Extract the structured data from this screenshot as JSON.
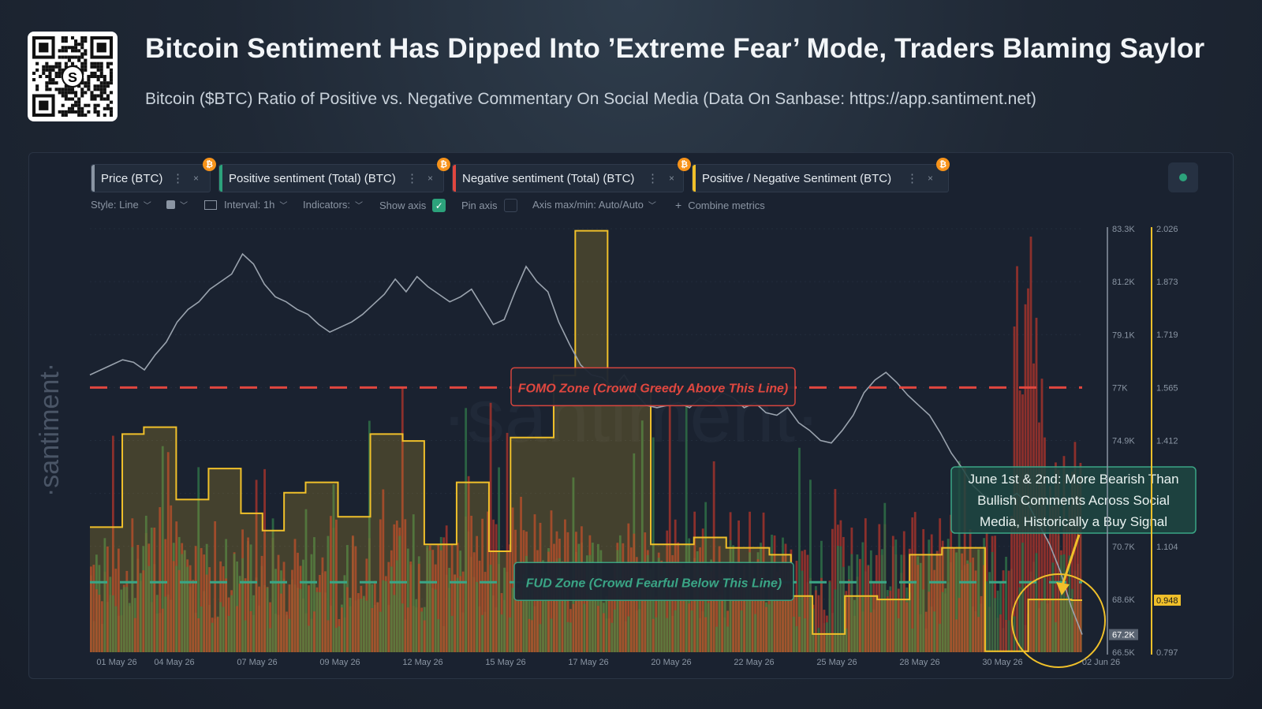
{
  "header": {
    "title": "Bitcoin Sentiment Has Dipped Into ’Extreme Fear’ Mode, Traders Blaming Saylor",
    "subtitle": "Bitcoin ($BTC) Ratio of Positive vs. Negative Commentary On Social Media (Data On Sanbase: https://app.santiment.net)",
    "qr_logo": "S"
  },
  "tabs": [
    {
      "label": "Price (BTC)",
      "color": "#8a95a3"
    },
    {
      "label": "Positive sentiment (Total) (BTC)",
      "color": "#2ca27b"
    },
    {
      "label": "Negative sentiment (Total) (BTC)",
      "color": "#e0473f"
    },
    {
      "label": "Positive / Negative Sentiment (BTC)",
      "color": "#f0c02a"
    }
  ],
  "tab_icons": {
    "menu": "⋮",
    "close": "×",
    "coin": "₿"
  },
  "toolbar": {
    "style": "Style: Line",
    "interval": "Interval: 1h",
    "indicators": "Indicators:",
    "show_axis": "Show axis",
    "pin_axis": "Pin axis",
    "axis_minmax": "Axis max/min: Auto/Auto",
    "combine": "Combine metrics",
    "check_mark": "✓",
    "plus": "+"
  },
  "watermark": {
    "side": "·santiment·",
    "center": "·santiment·"
  },
  "chart_data": {
    "type": "line",
    "x_labels": [
      "01 May 26",
      "04 May 26",
      "07 May 26",
      "09 May 26",
      "12 May 26",
      "15 May 26",
      "17 May 26",
      "20 May 26",
      "22 May 26",
      "25 May 26",
      "28 May 26",
      "30 May 26",
      "02 Jun 26"
    ],
    "price_axis": {
      "ticks": [
        "83.3K",
        "81.2K",
        "79.1K",
        "77K",
        "74.9K",
        "70.7K",
        "68.6K",
        "66.5K"
      ],
      "ylim": [
        66500,
        83300
      ],
      "current": "67.2K",
      "current_value": 67200
    },
    "ratio_axis": {
      "ticks": [
        "2.026",
        "1.873",
        "1.719",
        "1.565",
        "1.412",
        "1.104",
        "0.797"
      ],
      "ylim": [
        0.797,
        2.026
      ],
      "current": "0.948",
      "current_value": 0.948
    },
    "series": [
      {
        "name": "Price (BTC)",
        "color": "#9aa3ae",
        "unit": "USD",
        "values": [
          77500,
          77700,
          77900,
          78100,
          78000,
          77700,
          78300,
          78800,
          79600,
          80100,
          80400,
          80900,
          81200,
          81500,
          82300,
          81900,
          81100,
          80600,
          80400,
          80100,
          79900,
          79500,
          79200,
          79400,
          79600,
          79900,
          80300,
          80700,
          81300,
          80800,
          81400,
          81000,
          80700,
          80400,
          80600,
          80900,
          80200,
          79500,
          79700,
          80800,
          81800,
          81200,
          80800,
          79600,
          78700,
          77900,
          77500,
          77400,
          77000,
          77500,
          76800,
          76300,
          76200,
          76300,
          76400,
          76200,
          76600,
          76400,
          76800,
          76600,
          76200,
          76400,
          76000,
          75900,
          76200,
          75600,
          75300,
          74900,
          74800,
          75300,
          75900,
          76800,
          77300,
          77600,
          77200,
          76700,
          76300,
          75900,
          75200,
          74400,
          73800,
          73100,
          72700,
          72500,
          72500,
          72800,
          72400,
          71600,
          70800,
          69700,
          68300,
          67200
        ]
      },
      {
        "name": "Positive / Negative Sentiment (BTC)",
        "color": "#f0c02a",
        "unit": "ratio",
        "values": [
          1.16,
          1.16,
          1.16,
          1.43,
          1.43,
          1.45,
          1.45,
          1.45,
          1.24,
          1.24,
          1.24,
          1.33,
          1.33,
          1.33,
          1.2,
          1.2,
          1.15,
          1.15,
          1.26,
          1.26,
          1.29,
          1.29,
          1.29,
          1.19,
          1.19,
          1.19,
          1.43,
          1.43,
          1.43,
          1.41,
          1.41,
          1.11,
          1.11,
          1.11,
          1.29,
          1.29,
          1.29,
          1.09,
          1.09,
          1.42,
          1.42,
          1.42,
          1.42,
          1.6,
          1.6,
          2.02,
          2.02,
          2.02,
          1.56,
          1.56,
          1.56,
          1.56,
          1.11,
          1.11,
          1.11,
          1.11,
          1.13,
          1.13,
          1.13,
          1.1,
          1.1,
          1.1,
          1.1,
          1.08,
          1.08,
          0.96,
          0.96,
          0.85,
          0.85,
          0.85,
          0.96,
          0.96,
          0.96,
          0.95,
          0.95,
          0.95,
          1.08,
          1.08,
          1.08,
          1.1,
          1.1,
          1.1,
          1.1,
          0.8,
          0.8,
          0.8,
          0.8,
          0.95,
          0.95,
          0.95,
          0.95,
          0.948
        ]
      }
    ],
    "bars": {
      "positive": {
        "name": "Positive sentiment (Total) (BTC)",
        "color": "#2f6e46"
      },
      "negative": {
        "name": "Negative sentiment (Total) (BTC)",
        "color": "#a1322c"
      }
    },
    "reference_lines": [
      {
        "label": "FOMO Zone (Crowd Greedy Above This Line)",
        "value": 1.565,
        "color": "#e0473f"
      },
      {
        "label": "FUD Zone (Crowd Fearful Below This Line)",
        "value": 1.0,
        "color": "#3aa585"
      }
    ],
    "annotation": {
      "lines": [
        "June 1st & 2nd: More Bearish Than",
        "Bullish Comments Across Social",
        "Media, Historically a Buy Signal"
      ],
      "color": "#3aa585"
    },
    "grid": true,
    "legend": "top"
  }
}
